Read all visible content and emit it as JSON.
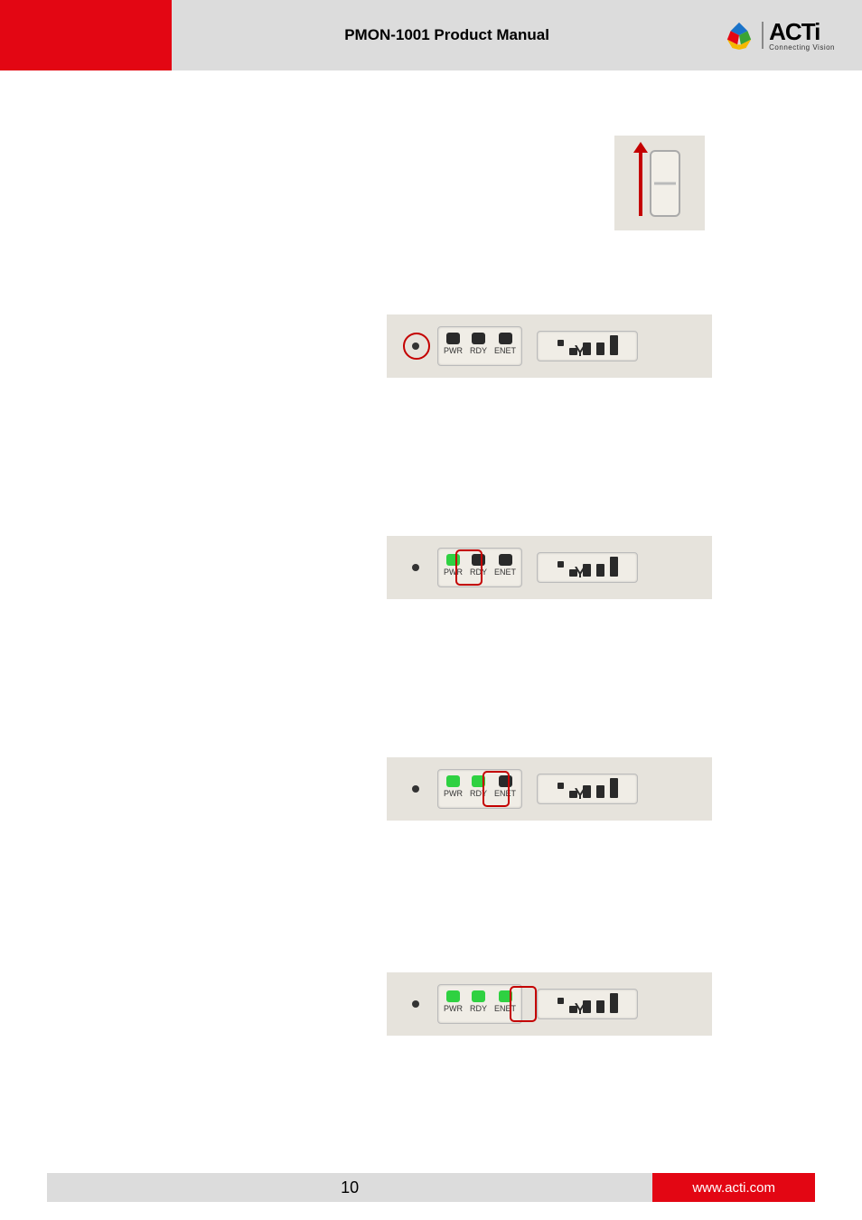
{
  "header": {
    "title": "PMON-1001 Product Manual",
    "brand": "ACTi",
    "tagline": "Connecting Vision",
    "red_block_color": "#e30613",
    "bg_color": "#dcdcdc"
  },
  "footer": {
    "page": "10",
    "url": "www.acti.com",
    "url_bg": "#e30613"
  },
  "switch": {
    "arrow_color": "#c40000",
    "bg": "#e6e3dc"
  },
  "panels": {
    "bg": "#e6e3dc",
    "led_on_color": "#2fd141",
    "led_off_color": "#2a2a2a",
    "highlight_color": "#c40000",
    "labels": {
      "pwr": "PWR",
      "rdy": "RDY",
      "enet": "ENET"
    },
    "signal_bar_heights": [
      8,
      14,
      14,
      22
    ],
    "items": [
      {
        "id": "panel1",
        "leds": {
          "pwr": "off",
          "rdy": "off",
          "enet": "off"
        },
        "highlight": "reset-circle"
      },
      {
        "id": "panel2",
        "leds": {
          "pwr": "on",
          "rdy": "off",
          "enet": "off"
        },
        "highlight": "pwr"
      },
      {
        "id": "panel3",
        "leds": {
          "pwr": "on",
          "rdy": "on",
          "enet": "off"
        },
        "highlight": "rdy"
      },
      {
        "id": "panel4",
        "leds": {
          "pwr": "on",
          "rdy": "on",
          "enet": "on"
        },
        "highlight": "enet"
      }
    ]
  },
  "logo_colors": {
    "top": "#1a73c9",
    "left": "#e30613",
    "bottom": "#f5b800",
    "right": "#3aa335"
  }
}
